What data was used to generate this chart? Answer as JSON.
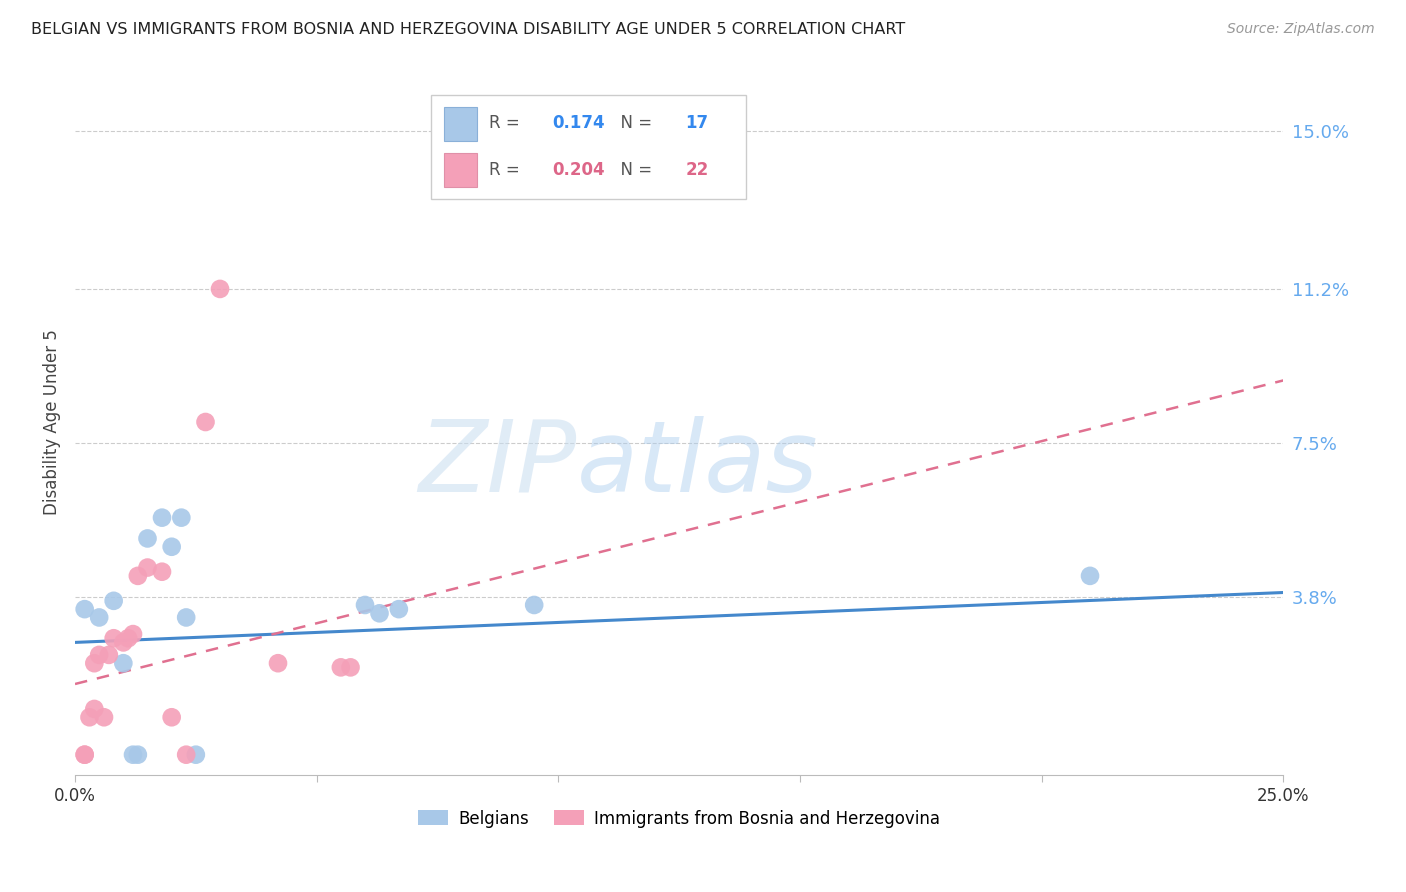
{
  "title": "BELGIAN VS IMMIGRANTS FROM BOSNIA AND HERZEGOVINA DISABILITY AGE UNDER 5 CORRELATION CHART",
  "source": "Source: ZipAtlas.com",
  "ylabel": "Disability Age Under 5",
  "watermark_zip": "ZIP",
  "watermark_atlas": "atlas",
  "ytick_labels": [
    "15.0%",
    "11.2%",
    "7.5%",
    "3.8%"
  ],
  "ytick_values": [
    0.15,
    0.112,
    0.075,
    0.038
  ],
  "xlim": [
    0.0,
    0.25
  ],
  "ylim": [
    -0.005,
    0.165
  ],
  "legend_r_blue": "0.174",
  "legend_n_blue": "17",
  "legend_r_pink": "0.204",
  "legend_n_pink": "22",
  "blue_color": "#a8c8e8",
  "pink_color": "#f4a0b8",
  "blue_line_color": "#4488cc",
  "pink_line_color": "#e07090",
  "grid_color": "#cccccc",
  "blue_scatter": [
    [
      0.002,
      0.035
    ],
    [
      0.005,
      0.033
    ],
    [
      0.008,
      0.037
    ],
    [
      0.01,
      0.022
    ],
    [
      0.012,
      0.0
    ],
    [
      0.013,
      0.0
    ],
    [
      0.015,
      0.052
    ],
    [
      0.018,
      0.057
    ],
    [
      0.02,
      0.05
    ],
    [
      0.022,
      0.057
    ],
    [
      0.023,
      0.033
    ],
    [
      0.025,
      0.0
    ],
    [
      0.06,
      0.036
    ],
    [
      0.063,
      0.034
    ],
    [
      0.067,
      0.035
    ],
    [
      0.095,
      0.036
    ],
    [
      0.21,
      0.043
    ]
  ],
  "pink_scatter": [
    [
      0.002,
      0.0
    ],
    [
      0.002,
      0.0
    ],
    [
      0.003,
      0.009
    ],
    [
      0.004,
      0.011
    ],
    [
      0.004,
      0.022
    ],
    [
      0.005,
      0.024
    ],
    [
      0.006,
      0.009
    ],
    [
      0.007,
      0.024
    ],
    [
      0.008,
      0.028
    ],
    [
      0.01,
      0.027
    ],
    [
      0.011,
      0.028
    ],
    [
      0.012,
      0.029
    ],
    [
      0.013,
      0.043
    ],
    [
      0.015,
      0.045
    ],
    [
      0.018,
      0.044
    ],
    [
      0.02,
      0.009
    ],
    [
      0.023,
      0.0
    ],
    [
      0.042,
      0.022
    ],
    [
      0.055,
      0.021
    ],
    [
      0.057,
      0.021
    ],
    [
      0.027,
      0.08
    ],
    [
      0.03,
      0.112
    ]
  ],
  "blue_trendline": [
    [
      0.0,
      0.027
    ],
    [
      0.25,
      0.039
    ]
  ],
  "pink_trendline": [
    [
      0.0,
      0.017
    ],
    [
      0.25,
      0.09
    ]
  ]
}
